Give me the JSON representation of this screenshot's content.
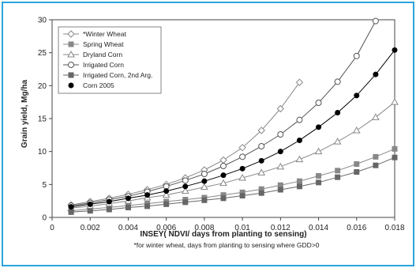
{
  "chart_data": {
    "type": "line",
    "xlabel": "INSEY( NDVI/ days from planting to sensing)",
    "ylabel": "Grain yield, Mg/ha",
    "note": "*for winter wheat, days from planting to sensing where GDD>0",
    "xlim": [
      0,
      0.018
    ],
    "ylim": [
      0,
      30
    ],
    "x_ticks": [
      "0",
      "0.002",
      "0.004",
      "0.006",
      "0.008",
      "0.01",
      "0.012",
      "0.014",
      "0.016",
      "0.018"
    ],
    "y_ticks": [
      "0",
      "5",
      "10",
      "15",
      "20",
      "25",
      "30"
    ],
    "grid": "off",
    "legend_position": "top-left",
    "series": [
      {
        "name": "*Winter Wheat",
        "marker": "diamond-open",
        "color": "#888888",
        "x": [
          0.001,
          0.002,
          0.003,
          0.004,
          0.005,
          0.006,
          0.007,
          0.008,
          0.009,
          0.01,
          0.011,
          0.012,
          0.013
        ],
        "y": [
          1.9,
          2.4,
          2.9,
          3.5,
          4.2,
          5.0,
          6.0,
          7.2,
          8.7,
          10.6,
          13.2,
          16.5,
          20.5
        ]
      },
      {
        "name": "Spring Wheat",
        "marker": "square-filled",
        "color": "#888888",
        "x": [
          0.001,
          0.002,
          0.003,
          0.004,
          0.005,
          0.006,
          0.007,
          0.008,
          0.009,
          0.01,
          0.011,
          0.012,
          0.013,
          0.014,
          0.015,
          0.016,
          0.017,
          0.018
        ],
        "y": [
          1.0,
          1.3,
          1.5,
          1.8,
          2.1,
          2.4,
          2.7,
          3.0,
          3.4,
          3.8,
          4.3,
          4.9,
          5.5,
          6.3,
          7.1,
          8.1,
          9.2,
          10.4
        ]
      },
      {
        "name": "Dryland Corn",
        "marker": "triangle-open",
        "color": "#888888",
        "x": [
          0.001,
          0.002,
          0.003,
          0.004,
          0.005,
          0.006,
          0.007,
          0.008,
          0.009,
          0.01,
          0.011,
          0.012,
          0.013,
          0.014,
          0.015,
          0.016,
          0.017,
          0.018
        ],
        "y": [
          1.4,
          1.7,
          2.1,
          2.5,
          3.0,
          3.4,
          4.0,
          4.6,
          5.2,
          6.0,
          6.8,
          7.7,
          8.8,
          10.0,
          11.5,
          13.2,
          15.2,
          17.5
        ]
      },
      {
        "name": "Irrigated Corn",
        "marker": "circle-open",
        "color": "#555555",
        "x": [
          0.001,
          0.002,
          0.003,
          0.004,
          0.005,
          0.006,
          0.007,
          0.008,
          0.009,
          0.01,
          0.011,
          0.012,
          0.013,
          0.014,
          0.015,
          0.016,
          0.017
        ],
        "y": [
          1.8,
          2.2,
          2.7,
          3.2,
          3.9,
          4.7,
          5.6,
          6.6,
          7.8,
          9.2,
          10.8,
          12.6,
          14.8,
          17.4,
          20.6,
          24.5,
          29.8
        ]
      },
      {
        "name": "Irrigated Corn, 2nd Arg.",
        "marker": "square-filled",
        "color": "#666666",
        "x": [
          0.001,
          0.002,
          0.003,
          0.004,
          0.005,
          0.006,
          0.007,
          0.008,
          0.009,
          0.01,
          0.011,
          0.012,
          0.013,
          0.014,
          0.015,
          0.016,
          0.017,
          0.018
        ],
        "y": [
          0.8,
          1.0,
          1.2,
          1.5,
          1.7,
          2.0,
          2.3,
          2.6,
          2.9,
          3.3,
          3.7,
          4.2,
          4.7,
          5.3,
          6.1,
          6.9,
          7.9,
          9.1
        ]
      },
      {
        "name": "Corn 2005",
        "marker": "circle-filled",
        "color": "#000000",
        "x": [
          0.001,
          0.002,
          0.003,
          0.004,
          0.005,
          0.006,
          0.007,
          0.008,
          0.009,
          0.01,
          0.011,
          0.012,
          0.013,
          0.014,
          0.015,
          0.016,
          0.017,
          0.018
        ],
        "y": [
          1.6,
          2.0,
          2.4,
          2.9,
          3.4,
          4.0,
          4.7,
          5.5,
          6.4,
          7.4,
          8.6,
          10.0,
          11.7,
          13.7,
          15.9,
          18.5,
          21.7,
          25.4
        ]
      }
    ]
  }
}
